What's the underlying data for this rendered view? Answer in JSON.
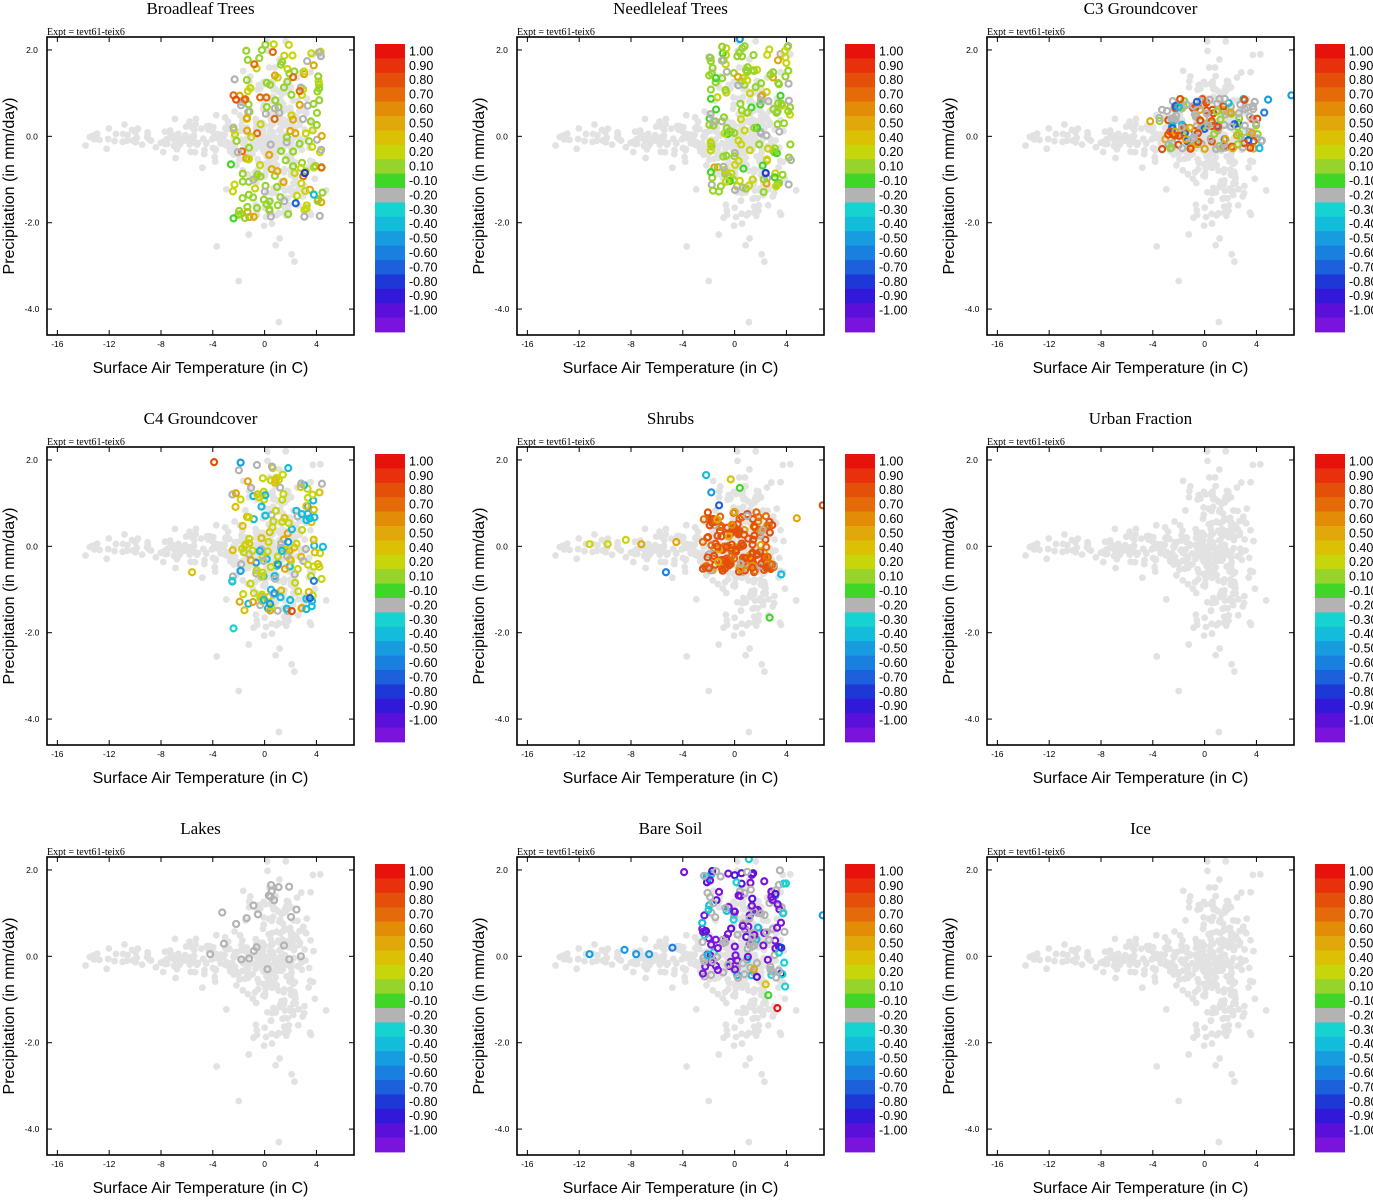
{
  "figure": {
    "expt_label": "Expt = tevt61-teix6",
    "xlabel": "Surface Air Temperature (in C)",
    "ylabel": "Precipitation (in mm/day)",
    "x_ticks": [
      "-16",
      "-12",
      "-8",
      "-4",
      "0",
      "4"
    ],
    "y_ticks": [
      "2.0",
      "0.0",
      "-2.0",
      "-4.0"
    ]
  },
  "colorbar": {
    "levels": [
      "1.00",
      "0.90",
      "0.80",
      "0.70",
      "0.60",
      "0.50",
      "0.40",
      "0.20",
      "0.10",
      "-0.10",
      "-0.20",
      "-0.30",
      "-0.40",
      "-0.50",
      "-0.60",
      "-0.70",
      "-0.80",
      "-0.90",
      "-1.00"
    ],
    "colors": [
      "#e8120c",
      "#e8300c",
      "#e44f0a",
      "#e56a0a",
      "#e38c08",
      "#e0a80a",
      "#dcc004",
      "#c6d60a",
      "#96d42c",
      "#40d628",
      "#b3b3b3",
      "#16d2d0",
      "#14bcdc",
      "#189ce0",
      "#1a80e0",
      "#1c60dc",
      "#1e38d8",
      "#3218d8",
      "#5a10d8",
      "#7a14dc"
    ],
    "neutral_color": "#b3b3b3",
    "background_point_color": "#e2e2e2"
  },
  "chart_data": [
    {
      "type": "scatter",
      "title": "Broadleaf Trees",
      "xlabel": "Surface Air Temperature (in C)",
      "ylabel": "Precipitation (in mm/day)",
      "xlim": [
        -16.8,
        6.9
      ],
      "ylim": [
        -4.6,
        2.3
      ],
      "highlight": {
        "x_range": [
          -2.5,
          4.5
        ],
        "y_range": [
          -1.9,
          2.2
        ],
        "colors_weighted": [
          [
            "#96d42c",
            6
          ],
          [
            "#c6d60a",
            3
          ],
          [
            "#e0a80a",
            2
          ],
          [
            "#e56a0a",
            1
          ],
          [
            "#b3b3b3",
            2
          ]
        ],
        "outliers": [
          [
            -2.4,
            0.95,
            "#e56a0a"
          ],
          [
            -2.2,
            0.85,
            "#e44f0a"
          ],
          [
            -2.6,
            -0.65,
            "#40d628"
          ],
          [
            -2.4,
            -1.9,
            "#40d628"
          ],
          [
            3.1,
            -0.85,
            "#1e38d8"
          ],
          [
            2.4,
            -1.55,
            "#1c60dc"
          ],
          [
            3.8,
            -1.35,
            "#14bcdc"
          ]
        ]
      }
    },
    {
      "type": "scatter",
      "title": "Needleleaf Trees",
      "xlabel": "Surface Air Temperature (in C)",
      "ylabel": "Precipitation (in mm/day)",
      "xlim": [
        -16.8,
        6.9
      ],
      "ylim": [
        -4.6,
        2.3
      ],
      "highlight": {
        "x_range": [
          -2.0,
          4.5
        ],
        "y_range": [
          -1.3,
          2.1
        ],
        "colors_weighted": [
          [
            "#96d42c",
            6
          ],
          [
            "#c6d60a",
            3
          ],
          [
            "#e0a80a",
            1
          ],
          [
            "#40d628",
            1
          ],
          [
            "#b3b3b3",
            2
          ]
        ],
        "outliers": [
          [
            0.4,
            2.25,
            "#189ce0"
          ],
          [
            3.1,
            -0.95,
            "#40d628"
          ],
          [
            2.4,
            -0.85,
            "#1e38d8"
          ]
        ]
      }
    },
    {
      "type": "scatter",
      "title": "C3 Groundcover",
      "xlabel": "Surface Air Temperature (in C)",
      "ylabel": "Precipitation (in mm/day)",
      "xlim": [
        -16.8,
        6.9
      ],
      "ylim": [
        -4.6,
        2.3
      ],
      "highlight": {
        "x_range": [
          -3.5,
          4.5
        ],
        "y_range": [
          -0.3,
          0.9
        ],
        "colors_weighted": [
          [
            "#b3b3b3",
            5
          ],
          [
            "#96d42c",
            2
          ],
          [
            "#e44f0a",
            2
          ],
          [
            "#e0a80a",
            1
          ],
          [
            "#14bcdc",
            1
          ],
          [
            "#1c60dc",
            1
          ]
        ],
        "outliers": [
          [
            -4.2,
            0.35,
            "#e0a80a"
          ],
          [
            4.6,
            0.55,
            "#1a80e0"
          ],
          [
            4.9,
            0.85,
            "#189ce0"
          ],
          [
            6.7,
            0.95,
            "#189ce0"
          ]
        ]
      }
    },
    {
      "type": "scatter",
      "title": "C4 Groundcover",
      "xlabel": "Surface Air Temperature (in C)",
      "ylabel": "Precipitation (in mm/day)",
      "xlim": [
        -16.8,
        6.9
      ],
      "ylim": [
        -4.6,
        2.3
      ],
      "highlight": {
        "x_range": [
          -2.5,
          4.5
        ],
        "y_range": [
          -1.5,
          2.0
        ],
        "colors_weighted": [
          [
            "#c6d60a",
            5
          ],
          [
            "#dcc004",
            2
          ],
          [
            "#14bcdc",
            2
          ],
          [
            "#e0a80a",
            1
          ],
          [
            "#b3b3b3",
            3
          ],
          [
            "#189ce0",
            1
          ]
        ],
        "outliers": [
          [
            -3.9,
            1.95,
            "#e44f0a"
          ],
          [
            -5.6,
            -0.6,
            "#dcc004"
          ],
          [
            -2.5,
            -0.8,
            "#16d2d0"
          ],
          [
            -2.4,
            -1.9,
            "#16d2d0"
          ],
          [
            2.1,
            -1.5,
            "#e44f0a"
          ],
          [
            3.5,
            -1.2,
            "#1c60dc"
          ],
          [
            3.8,
            -0.8,
            "#1a80e0"
          ]
        ]
      }
    },
    {
      "type": "scatter",
      "title": "Shrubs",
      "xlabel": "Surface Air Temperature (in C)",
      "ylabel": "Precipitation (in mm/day)",
      "xlim": [
        -16.8,
        6.9
      ],
      "ylim": [
        -4.6,
        2.3
      ],
      "highlight": {
        "x_range": [
          -2.5,
          3.2
        ],
        "y_range": [
          -0.6,
          0.8
        ],
        "colors_weighted": [
          [
            "#e44f0a",
            6
          ],
          [
            "#e56a0a",
            3
          ],
          [
            "#e38c08",
            1
          ],
          [
            "#e0a80a",
            1
          ],
          [
            "#b3b3b3",
            1
          ]
        ],
        "outliers": [
          [
            -11.2,
            0.05,
            "#c6d60a"
          ],
          [
            -9.8,
            0.05,
            "#c6d60a"
          ],
          [
            -8.4,
            0.15,
            "#c6d60a"
          ],
          [
            -7.2,
            0.05,
            "#e0a80a"
          ],
          [
            -4.5,
            0.1,
            "#e0a80a"
          ],
          [
            -2.2,
            1.65,
            "#14bcdc"
          ],
          [
            -1.8,
            1.25,
            "#189ce0"
          ],
          [
            -1.2,
            0.95,
            "#1c60dc"
          ],
          [
            -5.3,
            -0.6,
            "#1a80e0"
          ],
          [
            3.6,
            -0.65,
            "#14bcdc"
          ],
          [
            2.7,
            -1.65,
            "#40d628"
          ],
          [
            4.8,
            0.65,
            "#e0a80a"
          ],
          [
            6.8,
            0.95,
            "#e44f0a"
          ],
          [
            -0.3,
            1.55,
            "#dcc004"
          ],
          [
            0.4,
            1.35,
            "#40d628"
          ]
        ]
      }
    },
    {
      "type": "scatter",
      "title": "Urban Fraction",
      "xlabel": "Surface Air Temperature (in C)",
      "ylabel": "Precipitation (in mm/day)",
      "xlim": [
        -16.8,
        6.9
      ],
      "ylim": [
        -4.6,
        2.3
      ],
      "highlight": null
    },
    {
      "type": "scatter",
      "title": "Lakes",
      "xlabel": "Surface Air Temperature (in C)",
      "ylabel": "Precipitation (in mm/day)",
      "xlim": [
        -16.8,
        6.9
      ],
      "ylim": [
        -4.6,
        2.3
      ],
      "highlight": {
        "x_range": [
          -3.5,
          2.5
        ],
        "y_range": [
          -0.4,
          1.8
        ],
        "colors_weighted": [
          [
            "#b3b3b3",
            1
          ]
        ],
        "outliers": [
          [
            -2.2,
            0.75,
            "#b3b3b3"
          ],
          [
            0.5,
            1.65,
            "#b3b3b3"
          ],
          [
            -4.2,
            0.05,
            "#b3b3b3"
          ],
          [
            -1.2,
            -0.05,
            "#b3b3b3"
          ],
          [
            1.5,
            0.25,
            "#b3b3b3"
          ],
          [
            2.8,
            0.0,
            "#b3b3b3"
          ]
        ]
      }
    },
    {
      "type": "scatter",
      "title": "Bare Soil",
      "xlabel": "Surface Air Temperature (in C)",
      "ylabel": "Precipitation (in mm/day)",
      "xlim": [
        -16.8,
        6.9
      ],
      "ylim": [
        -4.6,
        2.3
      ],
      "highlight": {
        "x_range": [
          -2.5,
          4.0
        ],
        "y_range": [
          -0.5,
          2.0
        ],
        "colors_weighted": [
          [
            "#b3b3b3",
            6
          ],
          [
            "#7a14dc",
            3
          ],
          [
            "#5a10d8",
            1
          ],
          [
            "#16d2d0",
            1
          ],
          [
            "#14bcdc",
            1
          ]
        ],
        "outliers": [
          [
            -11.2,
            0.05,
            "#189ce0"
          ],
          [
            -8.5,
            0.15,
            "#189ce0"
          ],
          [
            -7.6,
            0.05,
            "#189ce0"
          ],
          [
            -6.6,
            0.05,
            "#189ce0"
          ],
          [
            -4.8,
            0.2,
            "#1a80e0"
          ],
          [
            -3.9,
            1.95,
            "#7a14dc"
          ],
          [
            1.5,
            -0.3,
            "#e0a80a"
          ],
          [
            2.4,
            -0.65,
            "#dcc004"
          ],
          [
            2.6,
            -0.9,
            "#40d628"
          ],
          [
            3.3,
            -1.2,
            "#e8120c"
          ],
          [
            3.9,
            -0.7,
            "#16d2d0"
          ],
          [
            3.6,
            0.2,
            "#1e38d8"
          ],
          [
            6.8,
            0.95,
            "#189ce0"
          ],
          [
            1.1,
            2.25,
            "#16d2d0"
          ]
        ]
      }
    },
    {
      "type": "scatter",
      "title": "Ice",
      "xlabel": "Surface Air Temperature (in C)",
      "ylabel": "Precipitation (in mm/day)",
      "xlim": [
        -16.8,
        6.9
      ],
      "ylim": [
        -4.6,
        2.3
      ],
      "highlight": null
    }
  ]
}
